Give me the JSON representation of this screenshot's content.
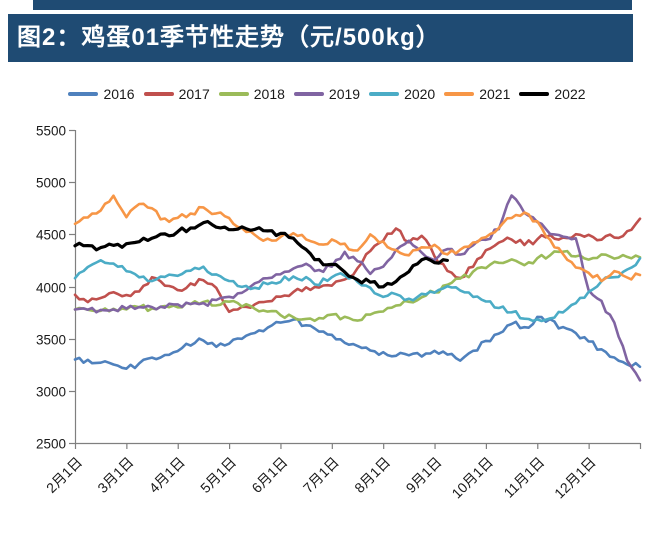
{
  "title_bar": {
    "text": "图2：鸡蛋01季节性走势（元/500kg）",
    "bg_color": "#1F4B73",
    "text_color": "#FFFFFF"
  },
  "chart_data": {
    "type": "line",
    "title": "鸡蛋01季节性走势",
    "unit": "元/500kg",
    "ylim": [
      2500,
      5500
    ],
    "y_ticks": [
      2500,
      3000,
      3500,
      4000,
      4500,
      5000,
      5500
    ],
    "x_tick_labels": [
      "2月1日",
      "3月1日",
      "4月1日",
      "5月1日",
      "6月1日",
      "7月1日",
      "8月1日",
      "9月1日",
      "10月1日",
      "11月1日",
      "12月1日"
    ],
    "points_per_month": 4,
    "legend_position": "top",
    "grid": false,
    "axis_color": "#7f7f7f",
    "tick_label_color": "#1a1a1a",
    "series": [
      {
        "name": "2016",
        "color": "#4F81BD",
        "values": [
          3300,
          3290,
          3280,
          3250,
          3220,
          3260,
          3310,
          3350,
          3390,
          3440,
          3490,
          3430,
          3460,
          3500,
          3550,
          3600,
          3650,
          3680,
          3620,
          3570,
          3530,
          3470,
          3430,
          3390,
          3360,
          3340,
          3350,
          3340,
          3380,
          3340,
          3300,
          3380,
          3470,
          3560,
          3650,
          3600,
          3700,
          3680,
          3600,
          3550,
          3470,
          3390,
          3320,
          3260,
          3230
        ]
      },
      {
        "name": "2017",
        "color": "#C0504D",
        "values": [
          3920,
          3860,
          3890,
          3950,
          3920,
          3960,
          4080,
          4000,
          3960,
          4030,
          4060,
          3990,
          3760,
          3800,
          3830,
          3860,
          3900,
          3950,
          3990,
          4000,
          4010,
          4060,
          4180,
          4350,
          4450,
          4560,
          4420,
          4480,
          4300,
          4160,
          4080,
          4200,
          4350,
          4420,
          4460,
          4400,
          4450,
          4500,
          4460,
          4510,
          4490,
          4450,
          4480,
          4520,
          4650
        ]
      },
      {
        "name": "2018",
        "color": "#9BBB59",
        "values": [
          3780,
          3770,
          3760,
          3780,
          3790,
          3800,
          3790,
          3810,
          3800,
          3830,
          3850,
          3820,
          3850,
          3820,
          3780,
          3750,
          3730,
          3700,
          3680,
          3700,
          3720,
          3700,
          3680,
          3730,
          3760,
          3810,
          3860,
          3900,
          3950,
          4010,
          4070,
          4140,
          4180,
          4230,
          4270,
          4210,
          4260,
          4310,
          4330,
          4300,
          4260,
          4300,
          4270,
          4290,
          4280
        ]
      },
      {
        "name": "2019",
        "color": "#8064A2",
        "values": [
          3780,
          3775,
          3770,
          3780,
          3790,
          3800,
          3810,
          3800,
          3820,
          3840,
          3830,
          3860,
          3900,
          3950,
          4020,
          4080,
          4120,
          4180,
          4220,
          4150,
          4200,
          4320,
          4250,
          4110,
          4200,
          4350,
          4430,
          4330,
          4260,
          4350,
          4310,
          4400,
          4450,
          4550,
          4880,
          4700,
          4620,
          4500,
          4470,
          4450,
          3970,
          3850,
          3650,
          3300,
          3100
        ]
      },
      {
        "name": "2020",
        "color": "#4BACC6",
        "values": [
          4080,
          4180,
          4250,
          4230,
          4150,
          4100,
          4050,
          4080,
          4100,
          4150,
          4180,
          4120,
          4050,
          4000,
          3980,
          4030,
          4050,
          4100,
          4080,
          4020,
          4100,
          4110,
          4050,
          3980,
          3900,
          3930,
          3880,
          3920,
          3950,
          4000,
          3960,
          3900,
          3850,
          3800,
          3750,
          3700,
          3680,
          3700,
          3750,
          3850,
          3950,
          4050,
          4100,
          4160,
          4270
        ]
      },
      {
        "name": "2021",
        "color": "#F79646",
        "values": [
          4600,
          4660,
          4720,
          4880,
          4660,
          4800,
          4740,
          4640,
          4650,
          4700,
          4760,
          4700,
          4650,
          4550,
          4500,
          4450,
          4480,
          4520,
          4460,
          4400,
          4450,
          4400,
          4350,
          4500,
          4420,
          4350,
          4300,
          4380,
          4400,
          4300,
          4350,
          4420,
          4480,
          4560,
          4660,
          4720,
          4620,
          4450,
          4300,
          4180,
          4120,
          4060,
          4150,
          4080,
          4110
        ]
      },
      {
        "name": "2022",
        "color": "#000000",
        "values": [
          4390,
          4380,
          4370,
          4390,
          4400,
          4440,
          4470,
          4500,
          4520,
          4570,
          4620,
          4580,
          4550,
          4560,
          4540,
          4530,
          4500,
          4470,
          4350,
          4250,
          4200,
          4150,
          4060,
          4050,
          3990,
          4060,
          4150,
          4250,
          4230,
          4250,
          null,
          null,
          null,
          null,
          null,
          null,
          null,
          null,
          null,
          null,
          null,
          null,
          null,
          null,
          null
        ]
      }
    ]
  }
}
